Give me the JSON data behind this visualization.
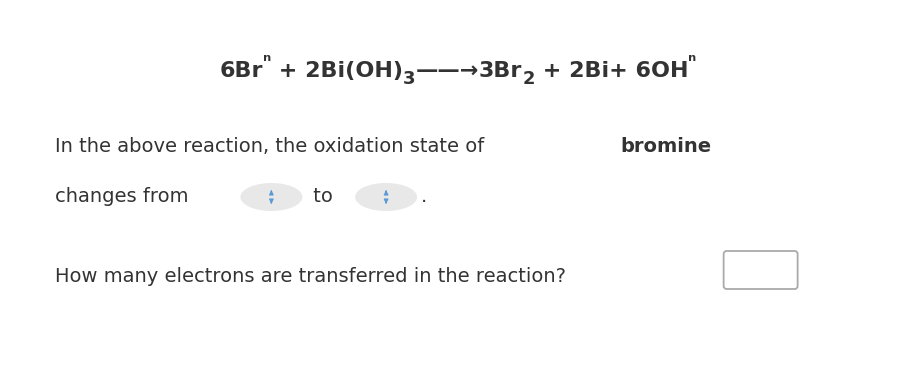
{
  "background_color": "#ffffff",
  "eq_line1": "6Br",
  "eq_sup1": "ⁿ",
  "eq_mid": " + 2Bi(OH)",
  "eq_sub1": "3",
  "eq_arrow": "——→",
  "eq_after_arrow": "3Br",
  "eq_sub2": "2",
  "eq_end": " + 2Bi+ 6OH",
  "eq_sup2": "ⁿ",
  "line2_normal": "In the above reaction, the oxidation state of ",
  "line2_bold": "bromine",
  "line3_prefix": "changes from",
  "line3_to": " to ",
  "line4": "How many electrons are transferred in the reaction?",
  "text_color": "#333333",
  "eq_fontsize": 16,
  "body_fontsize": 14,
  "dropdown_color": "#e8e8e8",
  "dropdown_arrow_color": "#5b9bd5",
  "box_edge_color": "#aaaaaa",
  "figsize": [
    9.16,
    3.87
  ],
  "dpi": 100
}
